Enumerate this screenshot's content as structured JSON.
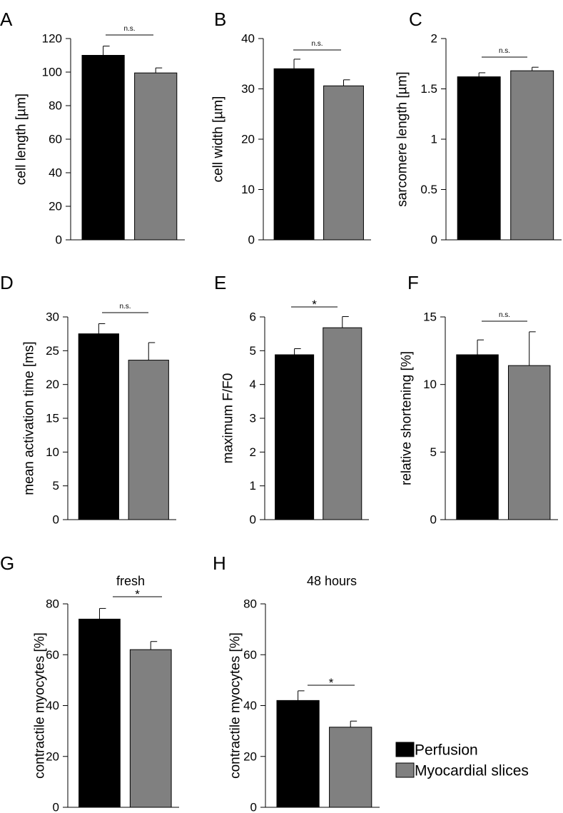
{
  "chart_data": [
    {
      "panel": "A",
      "type": "bar",
      "ylabel": "cell length [µm]",
      "ylim": [
        0,
        120
      ],
      "yticks": [
        0,
        20,
        40,
        60,
        80,
        100,
        120
      ],
      "ytick_labels": [
        "0",
        "20",
        "40",
        "60",
        "80",
        "100",
        "120"
      ],
      "values": [
        110,
        99.5
      ],
      "errors": [
        5.5,
        3
      ],
      "significance": "n.s."
    },
    {
      "panel": "B",
      "type": "bar",
      "ylabel": "cell width [µm]",
      "ylim": [
        0,
        40
      ],
      "yticks": [
        0,
        10,
        20,
        30,
        40
      ],
      "ytick_labels": [
        "0",
        "10",
        "20",
        "30",
        "40"
      ],
      "values": [
        34,
        30.6
      ],
      "errors": [
        1.9,
        1.2
      ],
      "significance": "n.s."
    },
    {
      "panel": "C",
      "type": "bar",
      "ylabel": "sarcomere length [µm]",
      "ylim": [
        0,
        2
      ],
      "yticks": [
        0,
        0.5,
        1,
        1.5,
        2
      ],
      "ytick_labels": [
        "0",
        "0.5",
        "1",
        "1.5",
        "2"
      ],
      "values": [
        1.62,
        1.68
      ],
      "errors": [
        0.04,
        0.035
      ],
      "significance": "n.s."
    },
    {
      "panel": "D",
      "type": "bar",
      "ylabel": "mean activation time [ms]",
      "ylim": [
        0,
        30
      ],
      "yticks": [
        0,
        5,
        10,
        15,
        20,
        25,
        30
      ],
      "ytick_labels": [
        "0",
        "5",
        "10",
        "15",
        "20",
        "25",
        "30"
      ],
      "values": [
        27.5,
        23.6
      ],
      "errors": [
        1.5,
        2.6
      ],
      "significance": "n.s."
    },
    {
      "panel": "E",
      "type": "bar",
      "ylabel": "maximum F/F0",
      "ylim": [
        0,
        6
      ],
      "yticks": [
        0,
        1,
        2,
        3,
        4,
        5,
        6
      ],
      "ytick_labels": [
        "0",
        "1",
        "2",
        "3",
        "4",
        "5",
        "6"
      ],
      "values": [
        4.88,
        5.68
      ],
      "errors": [
        0.18,
        0.33
      ],
      "significance": "*"
    },
    {
      "panel": "F",
      "type": "bar",
      "ylabel": "relative shortening [%]",
      "ylim": [
        0,
        15
      ],
      "yticks": [
        0,
        5,
        10,
        15
      ],
      "ytick_labels": [
        "0",
        "5",
        "10",
        "15"
      ],
      "values": [
        12.2,
        11.4
      ],
      "errors": [
        1.1,
        2.5
      ],
      "significance": "n.s."
    },
    {
      "panel": "G",
      "type": "bar",
      "title": "fresh",
      "ylabel": "contractile myocytes [%]",
      "ylim": [
        0,
        80
      ],
      "yticks": [
        0,
        20,
        40,
        60,
        80
      ],
      "ytick_labels": [
        "0",
        "20",
        "40",
        "60",
        "80"
      ],
      "values": [
        74,
        62
      ],
      "errors": [
        4.2,
        3.2
      ],
      "significance": "*"
    },
    {
      "panel": "H",
      "type": "bar",
      "title": "48 hours",
      "ylabel": "contractile myocytes [%]",
      "ylim": [
        0,
        80
      ],
      "yticks": [
        0,
        20,
        40,
        60,
        80
      ],
      "ytick_labels": [
        "0",
        "20",
        "40",
        "60",
        "80"
      ],
      "values": [
        42,
        31.5
      ],
      "errors": [
        3.8,
        2.4
      ],
      "significance": "*"
    }
  ],
  "legend": {
    "placement": "bottom-right",
    "items": [
      {
        "label": "Perfusion",
        "color": "#000000"
      },
      {
        "label": "Myocardial slices",
        "color": "#808080"
      }
    ]
  },
  "colors": {
    "perfusion": "#000000",
    "slices": "#808080"
  }
}
